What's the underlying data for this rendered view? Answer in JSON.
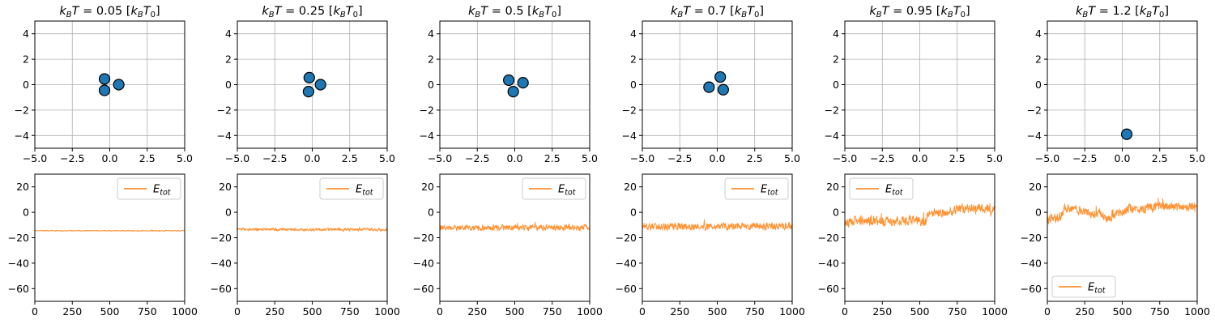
{
  "colors": {
    "marker_fill": "#1f77b4",
    "marker_edge": "#000000",
    "energy_line": "#ff7f0e",
    "grid": "#b0b0b0",
    "axis": "#000000"
  },
  "chart_data": [
    {
      "type": "scatter",
      "title": "k_BT = 0.05 [k_BT_0]",
      "title_parts": [
        "0.05"
      ],
      "xlim": [
        -5,
        5
      ],
      "ylim": [
        -5,
        5
      ],
      "xticks": [
        "-5.0",
        "-2.5",
        "0.0",
        "2.5",
        "5.0"
      ],
      "yticks": [
        "-4",
        "-2",
        "0",
        "2",
        "4"
      ],
      "grid": true,
      "points": [
        [
          -0.35,
          0.45
        ],
        [
          -0.35,
          -0.45
        ],
        [
          0.6,
          0.0
        ]
      ]
    },
    {
      "type": "scatter",
      "title": "k_BT = 0.25 [k_BT_0]",
      "title_parts": [
        "0.25"
      ],
      "xlim": [
        -5,
        5
      ],
      "ylim": [
        -5,
        5
      ],
      "xticks": [
        "-5.0",
        "-2.5",
        "0.0",
        "2.5",
        "5.0"
      ],
      "yticks": [
        "-4",
        "-2",
        "0",
        "2",
        "4"
      ],
      "grid": true,
      "points": [
        [
          -0.2,
          0.55
        ],
        [
          -0.25,
          -0.55
        ],
        [
          0.55,
          0.0
        ]
      ]
    },
    {
      "type": "scatter",
      "title": "k_BT = 0.5 [k_BT_0]",
      "title_parts": [
        "0.5"
      ],
      "xlim": [
        -5,
        5
      ],
      "ylim": [
        -5,
        5
      ],
      "xticks": [
        "-5.0",
        "-2.5",
        "0.0",
        "2.5",
        "5.0"
      ],
      "yticks": [
        "-4",
        "-2",
        "0",
        "2",
        "4"
      ],
      "grid": true,
      "points": [
        [
          -0.4,
          0.35
        ],
        [
          0.55,
          0.15
        ],
        [
          -0.1,
          -0.55
        ]
      ]
    },
    {
      "type": "scatter",
      "title": "k_BT = 0.7 [k_BT_0]",
      "title_parts": [
        "0.7"
      ],
      "xlim": [
        -5,
        5
      ],
      "ylim": [
        -5,
        5
      ],
      "xticks": [
        "-5.0",
        "-2.5",
        "0.0",
        "2.5",
        "5.0"
      ],
      "yticks": [
        "-4",
        "-2",
        "0",
        "2",
        "4"
      ],
      "grid": true,
      "points": [
        [
          0.2,
          0.6
        ],
        [
          -0.55,
          -0.2
        ],
        [
          0.4,
          -0.4
        ]
      ]
    },
    {
      "type": "scatter",
      "title": "k_BT = 0.95 [k_BT_0]",
      "title_parts": [
        "0.95"
      ],
      "xlim": [
        -5,
        5
      ],
      "ylim": [
        -5,
        5
      ],
      "xticks": [
        "-5.0",
        "-2.5",
        "0.0",
        "2.5",
        "5.0"
      ],
      "yticks": [
        "-4",
        "-2",
        "0",
        "2",
        "4"
      ],
      "grid": true,
      "points": []
    },
    {
      "type": "scatter",
      "title": "k_BT = 1.2 [k_BT_0]",
      "title_parts": [
        "1.2"
      ],
      "xlim": [
        -5,
        5
      ],
      "ylim": [
        -5,
        5
      ],
      "xticks": [
        "-5.0",
        "-2.5",
        "0.0",
        "2.5",
        "5.0"
      ],
      "yticks": [
        "-4",
        "-2",
        "0",
        "2",
        "4"
      ],
      "grid": true,
      "points": [
        [
          0.3,
          -3.9
        ]
      ]
    },
    {
      "type": "line",
      "xlim": [
        0,
        1000
      ],
      "ylim": [
        -70,
        30
      ],
      "xticks": [
        "0",
        "250",
        "500",
        "750",
        "1000"
      ],
      "yticks": [
        "20",
        "0",
        "−20",
        "−40",
        "−60"
      ],
      "legend": "upper right",
      "series": [
        {
          "name": "E_tot",
          "x_range": [
            0,
            1000
          ],
          "keypoints": [
            [
              0,
              -14.5
            ],
            [
              1000,
              -14.5
            ]
          ],
          "noise": 0.3,
          "n": 500
        }
      ]
    },
    {
      "type": "line",
      "xlim": [
        0,
        1000
      ],
      "ylim": [
        -70,
        30
      ],
      "xticks": [
        "0",
        "250",
        "500",
        "750",
        "1000"
      ],
      "yticks": [
        "20",
        "0",
        "−20",
        "−40",
        "−60"
      ],
      "legend": "upper right",
      "series": [
        {
          "name": "E_tot",
          "x_range": [
            0,
            1000
          ],
          "keypoints": [
            [
              0,
              -13.5
            ],
            [
              1000,
              -13.5
            ]
          ],
          "noise": 1.0,
          "n": 500
        }
      ]
    },
    {
      "type": "line",
      "xlim": [
        0,
        1000
      ],
      "ylim": [
        -70,
        30
      ],
      "xticks": [
        "0",
        "250",
        "500",
        "750",
        "1000"
      ],
      "yticks": [
        "20",
        "0",
        "−20",
        "−40",
        "−60"
      ],
      "legend": "upper right",
      "series": [
        {
          "name": "E_tot",
          "x_range": [
            0,
            1000
          ],
          "keypoints": [
            [
              0,
              -12
            ],
            [
              1000,
              -12
            ]
          ],
          "noise": 2.0,
          "n": 500
        }
      ]
    },
    {
      "type": "line",
      "xlim": [
        0,
        1000
      ],
      "ylim": [
        -70,
        30
      ],
      "xticks": [
        "0",
        "250",
        "500",
        "750",
        "1000"
      ],
      "yticks": [
        "20",
        "0",
        "−20",
        "−40",
        "−60"
      ],
      "legend": "upper right",
      "series": [
        {
          "name": "E_tot",
          "x_range": [
            0,
            1000
          ],
          "keypoints": [
            [
              0,
              -11
            ],
            [
              1000,
              -11
            ]
          ],
          "noise": 2.6,
          "n": 500
        }
      ]
    },
    {
      "type": "line",
      "xlim": [
        0,
        1000
      ],
      "ylim": [
        -70,
        30
      ],
      "xticks": [
        "0",
        "250",
        "500",
        "750",
        "1000"
      ],
      "yticks": [
        "20",
        "0",
        "−20",
        "−40",
        "−60"
      ],
      "legend": "upper left",
      "series": [
        {
          "name": "E_tot",
          "x_range": [
            0,
            1000
          ],
          "keypoints": [
            [
              0,
              -9
            ],
            [
              100,
              -6
            ],
            [
              200,
              -7
            ],
            [
              300,
              -8
            ],
            [
              420,
              -6
            ],
            [
              540,
              -7
            ],
            [
              560,
              0
            ],
            [
              700,
              0
            ],
            [
              760,
              3
            ],
            [
              1000,
              3
            ]
          ],
          "noise": 3.2,
          "n": 500
        }
      ]
    },
    {
      "type": "line",
      "xlim": [
        0,
        1000
      ],
      "ylim": [
        -70,
        30
      ],
      "xticks": [
        "0",
        "250",
        "500",
        "750",
        "1000"
      ],
      "yticks": [
        "20",
        "0",
        "−20",
        "−40",
        "−60"
      ],
      "legend": "lower left",
      "series": [
        {
          "name": "E_tot",
          "x_range": [
            0,
            1000
          ],
          "keypoints": [
            [
              0,
              -6
            ],
            [
              80,
              -4
            ],
            [
              120,
              3
            ],
            [
              250,
              1
            ],
            [
              300,
              -2
            ],
            [
              350,
              -1
            ],
            [
              400,
              -5
            ],
            [
              480,
              0
            ],
            [
              550,
              3
            ],
            [
              650,
              3
            ],
            [
              800,
              5
            ],
            [
              1000,
              4
            ]
          ],
          "noise": 3.2,
          "n": 500
        }
      ]
    }
  ]
}
